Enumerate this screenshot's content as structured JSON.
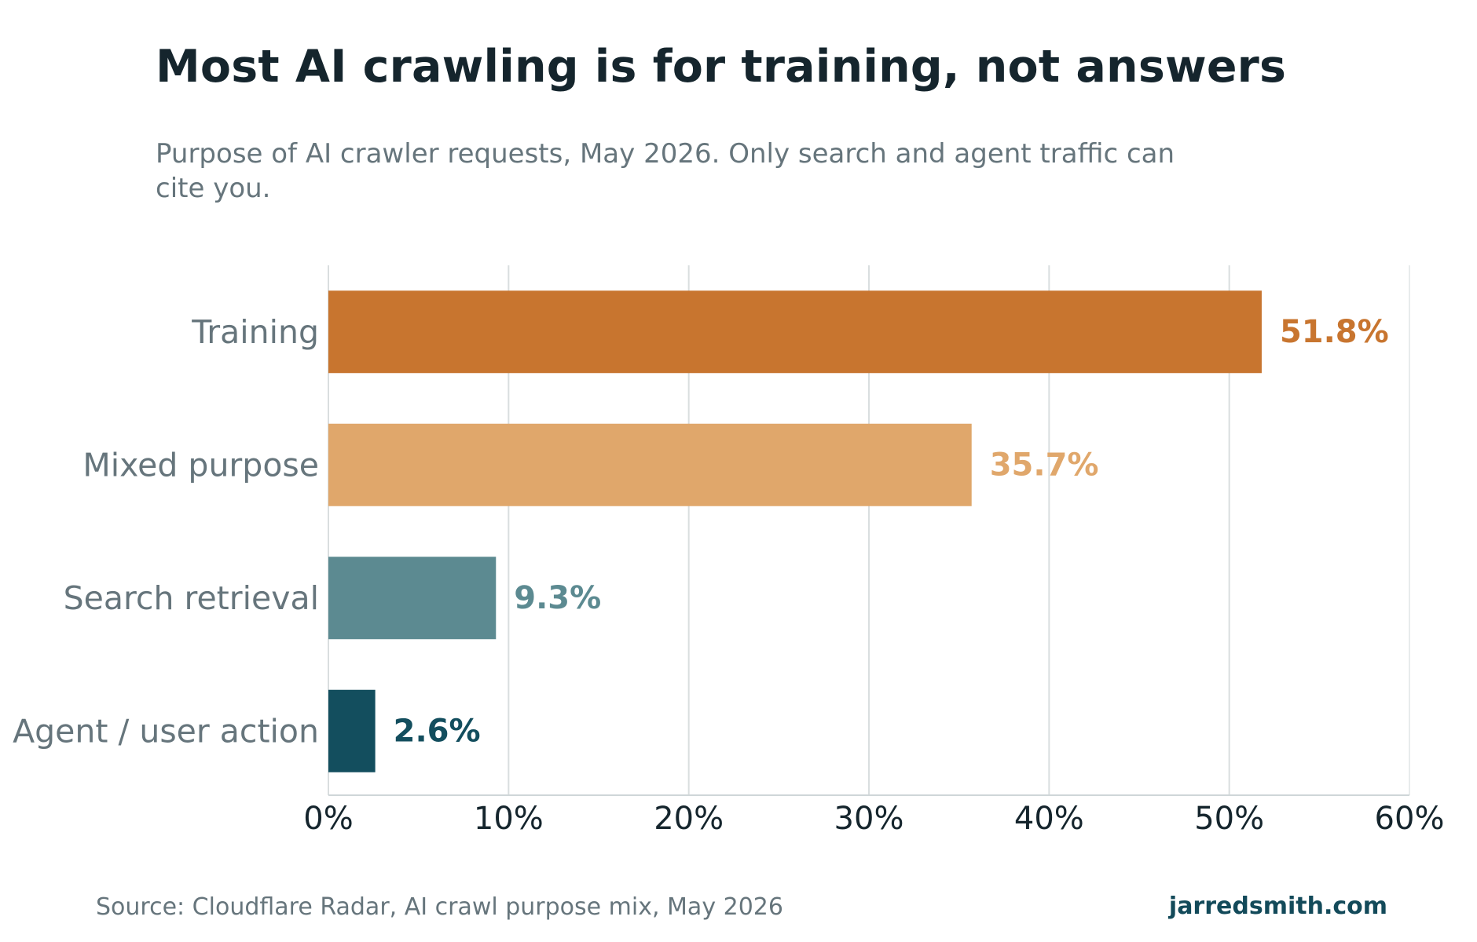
{
  "chart_data": {
    "type": "bar",
    "orientation": "horizontal",
    "title": "Most AI crawling is for training, not answers",
    "subtitle": "Purpose of AI crawler requests, May 2026. Only search and agent traffic can cite you.",
    "categories": [
      "Training",
      "Mixed purpose",
      "Search retrieval",
      "Agent / user action"
    ],
    "values": [
      51.8,
      35.7,
      9.3,
      2.6
    ],
    "value_labels": [
      "51.8%",
      "35.7%",
      "9.3%",
      "2.6%"
    ],
    "colors": [
      "#c8752f",
      "#e0a76b",
      "#5c8a91",
      "#134e5e"
    ],
    "xlim": [
      0,
      60
    ],
    "xticks": [
      0,
      10,
      20,
      30,
      40,
      50,
      60
    ],
    "xtick_labels": [
      "0%",
      "10%",
      "20%",
      "30%",
      "40%",
      "50%",
      "60%"
    ],
    "xlabel": "",
    "ylabel": "",
    "grid": "vertical",
    "grid_color": "#d9dedf",
    "legend": "none"
  },
  "footer": {
    "source": "Source: Cloudflare Radar, AI crawl purpose mix, May 2026",
    "credit": "jarredsmith.com"
  }
}
